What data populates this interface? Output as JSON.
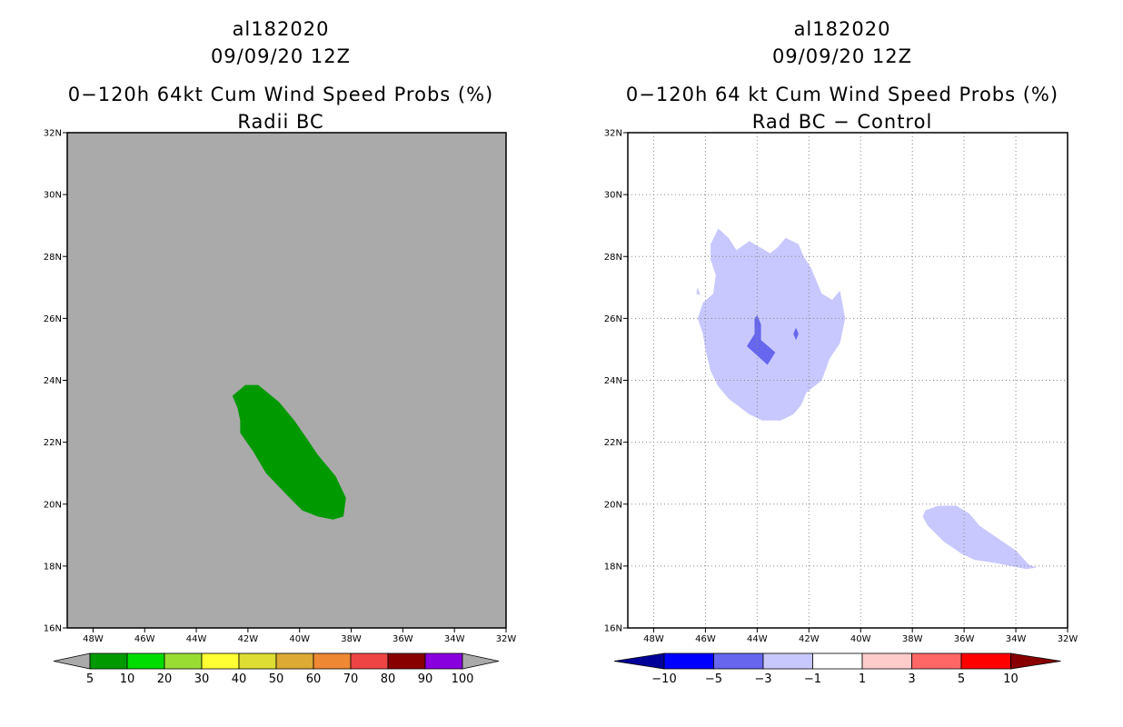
{
  "left_panel": {
    "title_lines": [
      "al182020",
      "09/09/20 12Z",
      "0−120h 64kt Cum Wind Speed Probs (%)",
      "Radii BC"
    ],
    "background_color": "#aaaaaa",
    "lat_labels": [
      "16N",
      "18N",
      "20N",
      "22N",
      "24N",
      "26N",
      "28N",
      "30N",
      "32N"
    ],
    "lon_labels": [
      "48W",
      "46W",
      "44W",
      "42W",
      "40W",
      "38W",
      "36W",
      "34W",
      "32W"
    ],
    "colorbar": {
      "colors": [
        "#009900",
        "#00dd00",
        "#99dd33",
        "#ffff33",
        "#dddd33",
        "#ddaa33",
        "#ee8833",
        "#ee4444",
        "#880000",
        "#8800dd"
      ],
      "end_color": "#aaaaaa",
      "labels": [
        "5",
        "10",
        "20",
        "30",
        "40",
        "50",
        "60",
        "70",
        "80",
        "90",
        "100"
      ]
    }
  },
  "right_panel": {
    "title_lines": [
      "al182020",
      "09/09/20 12Z",
      "0−120h 64 kt Cum Wind Speed Probs (%)",
      "Rad BC − Control"
    ],
    "background_color": "#ffffff",
    "lat_labels": [
      "16N",
      "18N",
      "20N",
      "22N",
      "24N",
      "26N",
      "28N",
      "30N",
      "32N"
    ],
    "lon_labels": [
      "48W",
      "46W",
      "44W",
      "42W",
      "40W",
      "38W",
      "36W",
      "34W",
      "32W"
    ],
    "colorbar": {
      "colors": [
        "#0000ff",
        "#6666ee",
        "#c8c8ff",
        "#ffffff",
        "#ffcccc",
        "#ff6666",
        "#ff0000"
      ],
      "low_end_color": "#000099",
      "high_end_color": "#880000",
      "labels": [
        "−10",
        "−5",
        "−3",
        "−1",
        "1",
        "3",
        "5",
        "10"
      ]
    }
  },
  "map_data": {
    "lat_range": [
      16,
      32
    ],
    "lon_range": [
      -49,
      -32
    ],
    "left_fields": [
      {
        "name": "prob-5-10-area",
        "color": "#009900",
        "polygon": [
          [
            -42.6,
            23.5
          ],
          [
            -42.1,
            23.85
          ],
          [
            -41.6,
            23.85
          ],
          [
            -40.8,
            23.3
          ],
          [
            -40.2,
            22.7
          ],
          [
            -39.7,
            22.1
          ],
          [
            -39.3,
            21.6
          ],
          [
            -38.6,
            20.9
          ],
          [
            -38.2,
            20.2
          ],
          [
            -38.3,
            19.6
          ],
          [
            -38.7,
            19.5
          ],
          [
            -39.3,
            19.6
          ],
          [
            -39.9,
            19.8
          ],
          [
            -40.5,
            20.3
          ],
          [
            -41.3,
            21.0
          ],
          [
            -41.8,
            21.7
          ],
          [
            -42.3,
            22.3
          ],
          [
            -42.3,
            22.7
          ],
          [
            -42.4,
            23.1
          ]
        ]
      }
    ],
    "right_fields": [
      {
        "name": "diff-minus1-to-minus3-north",
        "color": "#c8c8ff",
        "polygon": [
          [
            -45.8,
            28.4
          ],
          [
            -45.5,
            28.9
          ],
          [
            -45.1,
            28.6
          ],
          [
            -44.8,
            28.2
          ],
          [
            -44.3,
            28.5
          ],
          [
            -43.9,
            28.3
          ],
          [
            -43.5,
            28.1
          ],
          [
            -43.2,
            28.3
          ],
          [
            -42.9,
            28.6
          ],
          [
            -42.4,
            28.4
          ],
          [
            -42.2,
            28.0
          ],
          [
            -41.9,
            27.6
          ],
          [
            -41.7,
            27.2
          ],
          [
            -41.5,
            26.8
          ],
          [
            -41.1,
            26.6
          ],
          [
            -40.8,
            26.9
          ],
          [
            -40.6,
            26.0
          ],
          [
            -40.8,
            25.2
          ],
          [
            -41.2,
            24.7
          ],
          [
            -41.5,
            24.0
          ],
          [
            -42.1,
            23.6
          ],
          [
            -42.3,
            23.2
          ],
          [
            -42.6,
            22.9
          ],
          [
            -43.1,
            22.7
          ],
          [
            -43.8,
            22.7
          ],
          [
            -44.3,
            22.9
          ],
          [
            -45.1,
            23.4
          ],
          [
            -45.5,
            23.8
          ],
          [
            -45.8,
            24.3
          ],
          [
            -46.0,
            25.0
          ],
          [
            -46.1,
            25.5
          ],
          [
            -46.3,
            26.0
          ],
          [
            -46.1,
            26.5
          ],
          [
            -45.7,
            26.8
          ],
          [
            -45.6,
            27.4
          ],
          [
            -45.8,
            27.9
          ]
        ]
      },
      {
        "name": "diff-minus1-to-minus3-island",
        "color": "#c8c8ff",
        "polygon": [
          [
            -46.3,
            27.0
          ],
          [
            -46.2,
            26.75
          ],
          [
            -46.35,
            26.8
          ]
        ]
      },
      {
        "name": "diff-minus3-to-minus5-core",
        "color": "#6666ee",
        "polygon": [
          [
            -44.0,
            26.1
          ],
          [
            -43.85,
            25.8
          ],
          [
            -43.85,
            25.3
          ],
          [
            -43.3,
            24.9
          ],
          [
            -43.6,
            24.5
          ],
          [
            -44.0,
            24.8
          ],
          [
            -44.4,
            25.1
          ],
          [
            -44.1,
            25.5
          ],
          [
            -44.1,
            26.0
          ]
        ]
      },
      {
        "name": "diff-minus3-to-minus5-spot",
        "color": "#6666ee",
        "polygon": [
          [
            -42.5,
            25.7
          ],
          [
            -42.4,
            25.5
          ],
          [
            -42.5,
            25.3
          ],
          [
            -42.6,
            25.5
          ]
        ]
      },
      {
        "name": "diff-minus1-to-minus3-south",
        "color": "#c8c8ff",
        "polygon": [
          [
            -37.5,
            19.8
          ],
          [
            -37.0,
            19.95
          ],
          [
            -36.3,
            19.95
          ],
          [
            -35.8,
            19.7
          ],
          [
            -35.4,
            19.3
          ],
          [
            -34.7,
            18.9
          ],
          [
            -34.0,
            18.5
          ],
          [
            -33.5,
            18.05
          ],
          [
            -33.2,
            17.95
          ],
          [
            -33.6,
            17.9
          ],
          [
            -34.2,
            18.0
          ],
          [
            -34.8,
            18.1
          ],
          [
            -35.6,
            18.2
          ],
          [
            -36.1,
            18.4
          ],
          [
            -36.8,
            18.8
          ],
          [
            -37.4,
            19.3
          ],
          [
            -37.6,
            19.6
          ]
        ]
      }
    ]
  }
}
